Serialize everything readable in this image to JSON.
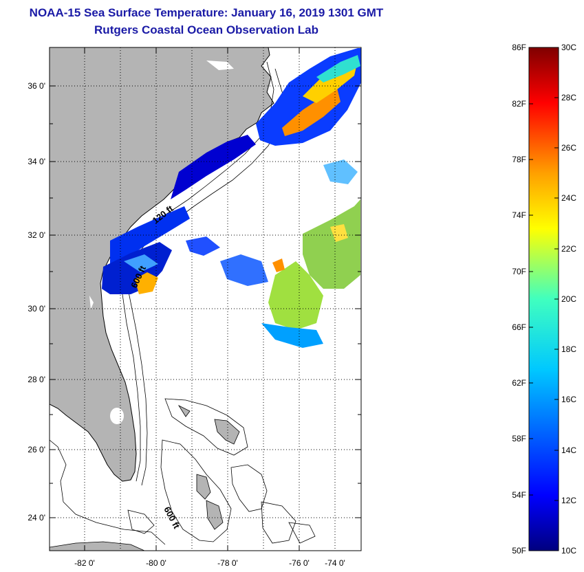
{
  "title": {
    "line1": "NOAA-15 Sea Surface Temperature:  January 16, 2019 1301 GMT",
    "line2": "Rutgers Coastal Ocean Observation Lab"
  },
  "map": {
    "lon_ticks": [
      "-82 0'",
      "-80 0'",
      "-78 0'",
      "-76 0'",
      "-74 0'"
    ],
    "lat_ticks": [
      "36 0'",
      "34 0'",
      "32 0'",
      "30 0'",
      "28 0'",
      "26 0'",
      "24 0'"
    ],
    "isobath_labels": [
      "120 ft",
      "600 ft",
      "600 ft"
    ]
  },
  "colorbar": {
    "f_labels": [
      "86F",
      "82F",
      "78F",
      "74F",
      "70F",
      "66F",
      "62F",
      "58F",
      "54F",
      "50F"
    ],
    "c_labels": [
      "30C",
      "28C",
      "26C",
      "24C",
      "22C",
      "20C",
      "18C",
      "16C",
      "14C",
      "12C",
      "10C"
    ],
    "colors": [
      "#00007f",
      "#0000ff",
      "#007fff",
      "#00ffff",
      "#7fff7f",
      "#ffff00",
      "#ff7f00",
      "#ff0000",
      "#7f0000"
    ]
  },
  "colors": {
    "land": "#b4b4b4",
    "title": "#1a1aa6"
  }
}
